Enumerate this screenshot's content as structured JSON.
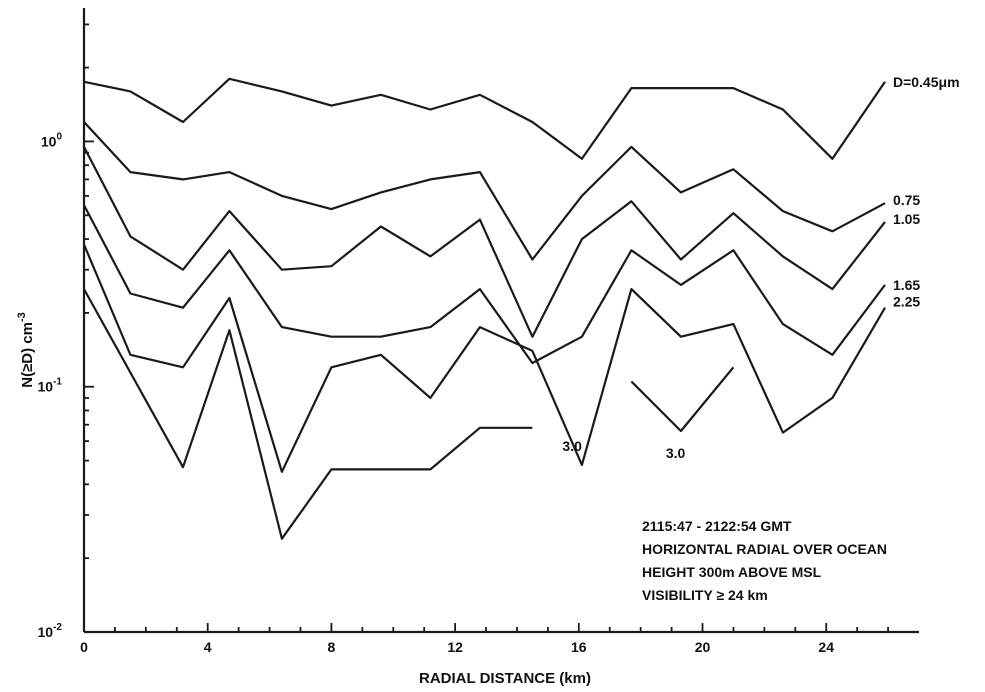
{
  "chart_data": {
    "type": "line",
    "xlabel": "RADIAL DISTANCE (km)",
    "ylabel": "N(≥D) cm",
    "ylabel_exponent": "-3",
    "y_scale": "log",
    "xlim": [
      0,
      27
    ],
    "ylim": [
      0.01,
      3.5
    ],
    "x_ticks": [
      0,
      4,
      8,
      12,
      16,
      20,
      24
    ],
    "x_tick_labels": [
      "0",
      "4",
      "8",
      "12",
      "16",
      "20",
      "24"
    ],
    "y_ticks": [
      1,
      0.1,
      0.01
    ],
    "y_tick_bases": [
      "10",
      "10",
      "10"
    ],
    "y_tick_exponents": [
      "0",
      "-1",
      "-2"
    ],
    "grid": false,
    "series": [
      {
        "name": "D=0.45μm",
        "x": [
          0,
          1.5,
          3.2,
          4.7,
          6.4,
          8.0,
          9.6,
          11.2,
          12.8,
          14.5,
          16.1,
          17.7,
          19.3,
          21.0,
          22.6,
          24.2,
          25.9
        ],
        "y": [
          1.75,
          1.6,
          1.2,
          1.8,
          1.6,
          1.4,
          1.55,
          1.35,
          1.55,
          1.2,
          0.85,
          1.65,
          1.65,
          1.65,
          1.35,
          0.85,
          1.75
        ]
      },
      {
        "name": "0.75",
        "x": [
          0,
          1.5,
          3.2,
          4.7,
          6.4,
          8.0,
          9.6,
          11.2,
          12.8,
          14.5,
          16.1,
          17.7,
          19.3,
          21.0,
          22.6,
          24.2,
          25.9
        ],
        "y": [
          1.2,
          0.75,
          0.7,
          0.75,
          0.6,
          0.53,
          0.62,
          0.7,
          0.75,
          0.33,
          0.6,
          0.95,
          0.62,
          0.77,
          0.52,
          0.43,
          0.56
        ]
      },
      {
        "name": "1.05",
        "x": [
          0,
          1.5,
          3.2,
          4.7,
          6.4,
          8.0,
          9.6,
          11.2,
          12.8,
          14.5,
          16.1,
          17.7,
          19.3,
          21.0,
          22.6,
          24.2,
          25.9
        ],
        "y": [
          0.95,
          0.41,
          0.3,
          0.52,
          0.3,
          0.31,
          0.45,
          0.34,
          0.48,
          0.16,
          0.4,
          0.57,
          0.33,
          0.51,
          0.34,
          0.25,
          0.47
        ]
      },
      {
        "name": "1.65",
        "x": [
          0,
          1.5,
          3.2,
          4.7,
          6.4,
          8.0,
          9.6,
          11.2,
          12.8,
          14.5,
          16.1,
          17.7,
          19.3,
          21.0,
          22.6,
          24.2,
          25.9
        ],
        "y": [
          0.55,
          0.24,
          0.21,
          0.36,
          0.175,
          0.16,
          0.16,
          0.175,
          0.25,
          0.125,
          0.16,
          0.36,
          0.26,
          0.36,
          0.18,
          0.135,
          0.26
        ]
      },
      {
        "name": "2.25",
        "x": [
          0,
          1.5,
          3.2,
          4.7,
          6.4,
          8.0,
          9.6,
          11.2,
          12.8,
          14.5,
          16.1,
          17.7,
          19.3,
          21.0,
          22.6,
          24.2,
          25.9
        ],
        "y": [
          0.38,
          0.135,
          0.12,
          0.23,
          0.045,
          0.12,
          0.135,
          0.09,
          0.175,
          0.14,
          0.048,
          0.25,
          0.16,
          0.18,
          0.065,
          0.09,
          0.21
        ]
      },
      {
        "name": "3.0",
        "x": [
          0,
          3.2,
          4.7,
          6.4,
          8.0,
          9.6,
          11.2,
          12.8,
          14.5
        ],
        "y": [
          0.25,
          0.047,
          0.17,
          0.024,
          0.046,
          0.046,
          0.046,
          0.068,
          0.068
        ]
      },
      {
        "name": "3.0",
        "x": [
          17.7,
          19.3,
          21.0
        ],
        "y": [
          0.105,
          0.066,
          0.12
        ]
      }
    ],
    "annotations": [
      "2115:47 - 2122:54 GMT",
      "HORIZONTAL RADIAL OVER OCEAN",
      "HEIGHT 300m ABOVE MSL",
      "VISIBILITY ≥ 24 km"
    ]
  }
}
